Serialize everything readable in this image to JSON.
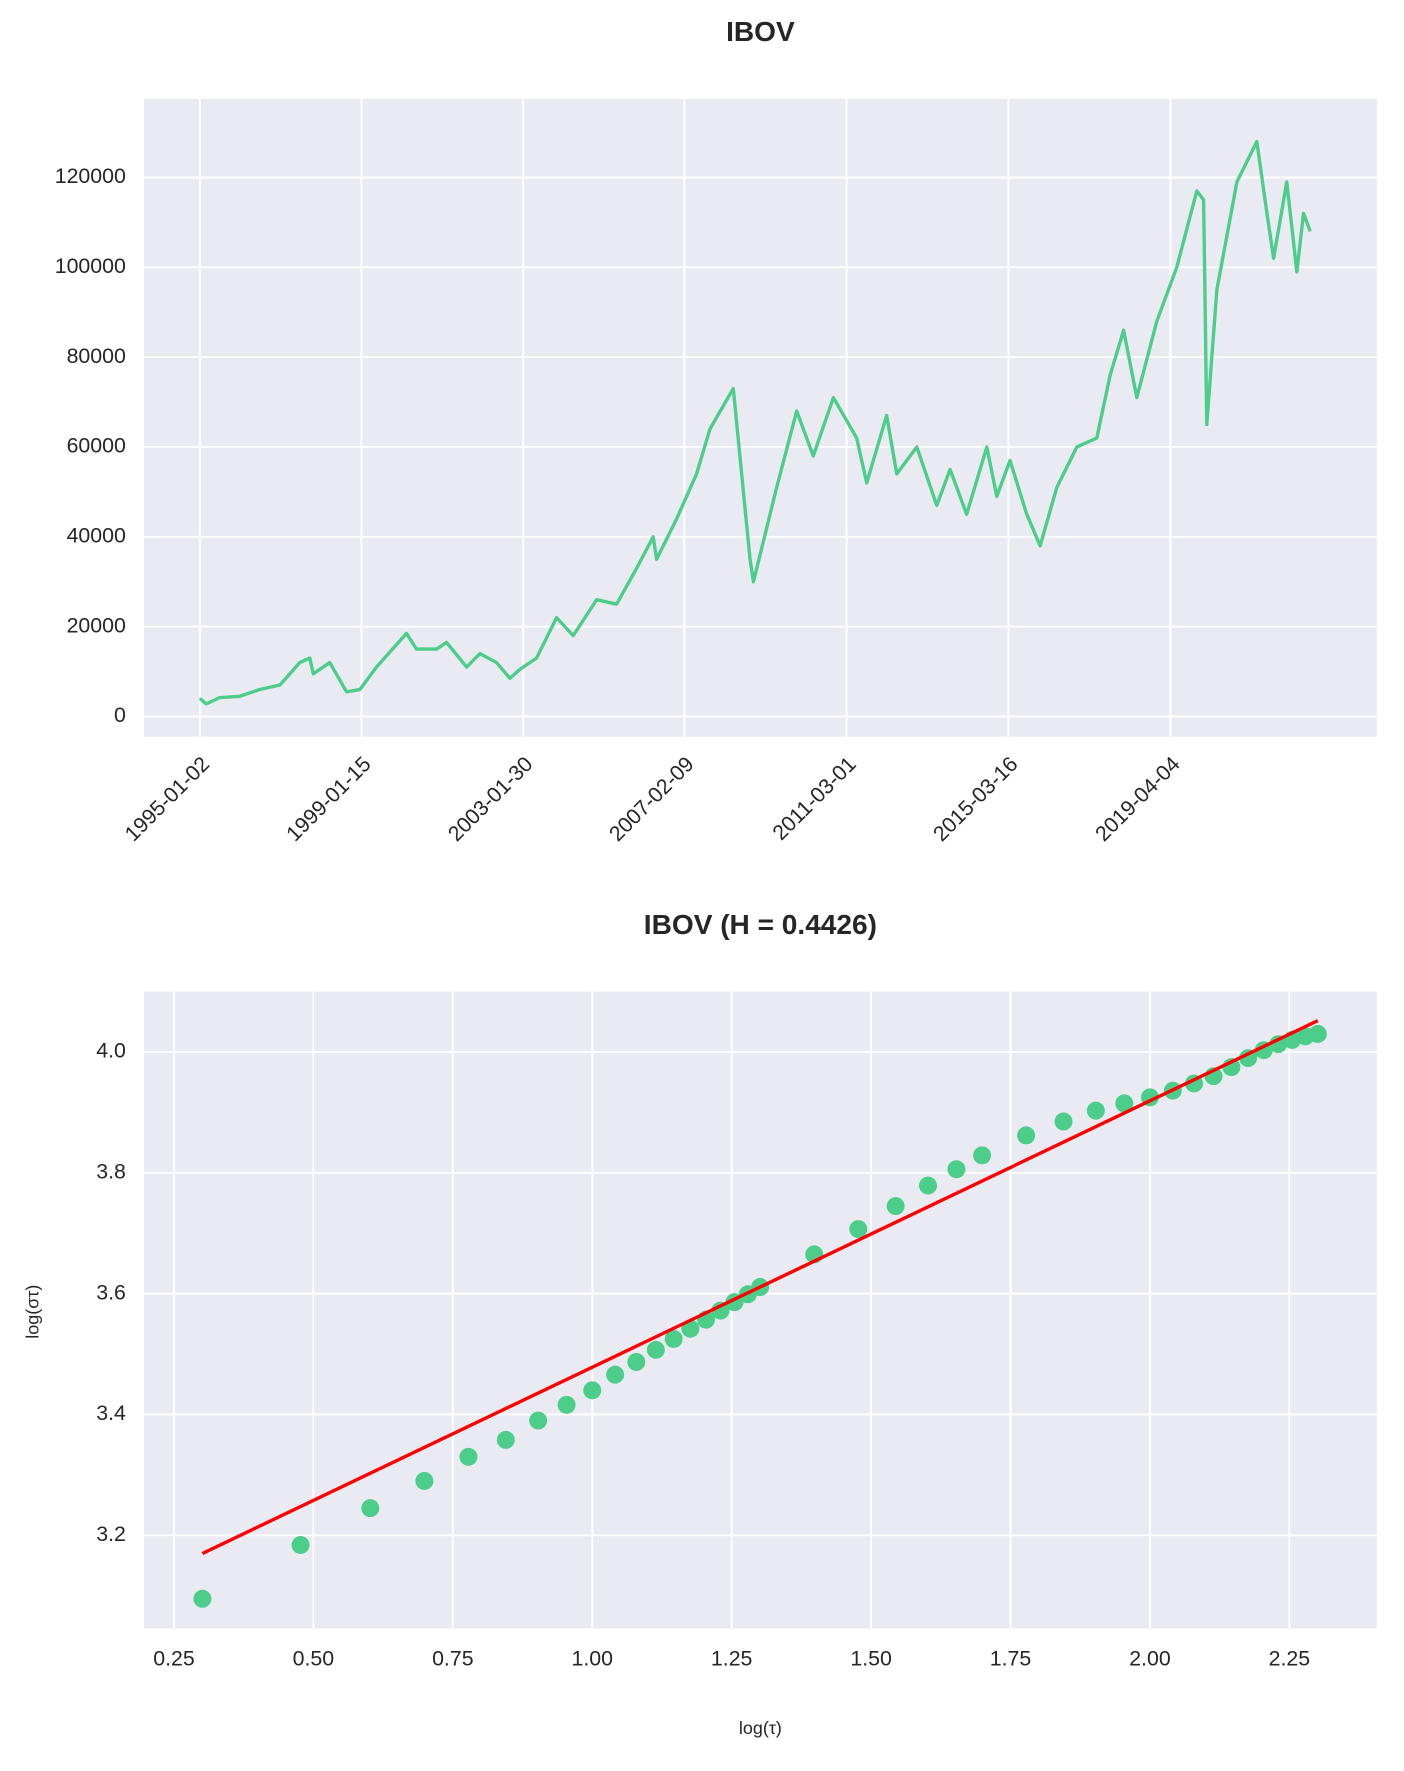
{
  "chart_data": [
    {
      "type": "line",
      "title": "IBOV",
      "x": [
        "1995-01",
        "1995-03",
        "1995-07",
        "1996-01",
        "1996-07",
        "1997-01",
        "1997-07",
        "1997-10",
        "1997-11",
        "1998-04",
        "1998-09",
        "1999-01",
        "1999-06",
        "1999-12",
        "2000-03",
        "2000-06",
        "2000-12",
        "2001-03",
        "2001-09",
        "2002-01",
        "2002-06",
        "2002-10",
        "2003-01",
        "2003-06",
        "2003-12",
        "2004-05",
        "2004-12",
        "2005-06",
        "2005-12",
        "2006-05",
        "2006-06",
        "2006-12",
        "2007-06",
        "2007-10",
        "2008-05",
        "2008-10",
        "2008-11",
        "2009-06",
        "2009-12",
        "2010-05",
        "2010-11",
        "2011-06",
        "2011-09",
        "2012-03",
        "2012-06",
        "2012-12",
        "2013-06",
        "2013-10",
        "2014-03",
        "2014-09",
        "2014-12",
        "2015-04",
        "2015-09",
        "2016-01",
        "2016-06",
        "2016-12",
        "2017-06",
        "2017-10",
        "2018-02",
        "2018-06",
        "2018-12",
        "2019-06",
        "2019-12",
        "2020-02",
        "2020-03",
        "2020-06",
        "2020-12",
        "2021-06",
        "2021-09",
        "2021-11",
        "2022-03",
        "2022-06",
        "2022-08",
        "2022-10"
      ],
      "series": [
        {
          "color": "#4ccd8a",
          "values": [
            4000,
            2800,
            4200,
            4500,
            6000,
            7000,
            12000,
            13000,
            9500,
            12000,
            5500,
            6000,
            11000,
            16000,
            18500,
            15000,
            15000,
            16500,
            11000,
            14000,
            12000,
            8500,
            10500,
            13000,
            22000,
            18000,
            26000,
            25000,
            33000,
            40000,
            35000,
            44000,
            54000,
            64000,
            73000,
            35000,
            30000,
            51000,
            68000,
            58000,
            71000,
            62000,
            52000,
            67000,
            54000,
            60000,
            47000,
            55000,
            45000,
            60000,
            49000,
            57000,
            45000,
            38000,
            51000,
            60000,
            62000,
            76000,
            86000,
            71000,
            88000,
            100000,
            117000,
            115000,
            65000,
            95000,
            119000,
            128000,
            112000,
            102000,
            119000,
            99000,
            112000,
            108000
          ]
        }
      ],
      "xlim": [
        "1993-08-08",
        "2024-06-01"
      ],
      "xticks": [
        "1995-01-02",
        "1999-01-15",
        "2003-01-30",
        "2007-02-09",
        "2011-03-01",
        "2015-03-16",
        "2019-04-04"
      ],
      "ylim": [
        -4500,
        137500
      ],
      "yticks": [
        0,
        20000,
        40000,
        60000,
        80000,
        100000,
        120000
      ],
      "grid": true
    },
    {
      "type": "scatter",
      "title": "IBOV (H = 0.4426)",
      "xlabel": "log(τ)",
      "ylabel": "log(στ)",
      "series": [
        {
          "type": "scatter",
          "color": "#4ccd8a",
          "x": [
            0.301,
            0.477,
            0.602,
            0.699,
            0.778,
            0.845,
            0.903,
            0.954,
            1.0,
            1.041,
            1.079,
            1.114,
            1.146,
            1.176,
            1.204,
            1.23,
            1.255,
            1.279,
            1.301,
            1.398,
            1.477,
            1.544,
            1.602,
            1.653,
            1.699,
            1.778,
            1.845,
            1.903,
            1.954,
            2.0,
            2.041,
            2.079,
            2.114,
            2.146,
            2.176,
            2.204,
            2.23,
            2.255,
            2.279,
            2.301
          ],
          "values": [
            3.095,
            3.184,
            3.245,
            3.29,
            3.33,
            3.358,
            3.39,
            3.416,
            3.44,
            3.466,
            3.487,
            3.507,
            3.525,
            3.542,
            3.557,
            3.572,
            3.586,
            3.599,
            3.611,
            3.665,
            3.707,
            3.745,
            3.779,
            3.806,
            3.829,
            3.862,
            3.885,
            3.903,
            3.915,
            3.925,
            3.936,
            3.948,
            3.96,
            3.975,
            3.99,
            4.003,
            4.013,
            4.02,
            4.026,
            4.03
          ]
        },
        {
          "type": "line",
          "color": "#ff0000",
          "x": [
            0.301,
            2.301
          ],
          "values": [
            3.17,
            4.052
          ]
        }
      ],
      "xlim": [
        0.196,
        2.407
      ],
      "xticks": [
        0.25,
        {
          "value": 0.5,
          "label": "0.50"
        },
        0.75,
        {
          "value": 1.0,
          "label": "1.00"
        },
        1.25,
        {
          "value": 1.5,
          "label": "1.50"
        },
        1.75,
        {
          "value": 2.0,
          "label": "2.00"
        },
        2.25
      ],
      "ylim": [
        3.046,
        4.1
      ],
      "yticks": [
        3.2,
        3.4,
        3.6,
        3.8,
        {
          "value": 4.0,
          "label": "4.0"
        }
      ],
      "grid": true
    }
  ]
}
